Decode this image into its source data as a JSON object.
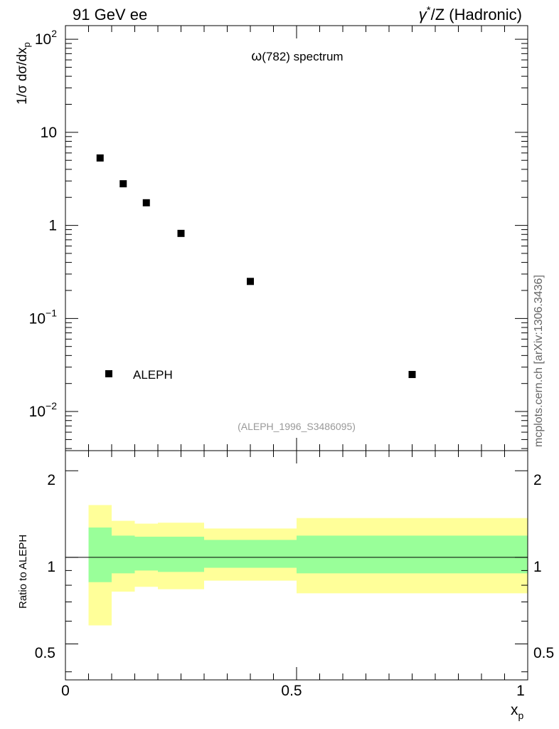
{
  "header": {
    "left": "91 GeV ee",
    "right_sym": "γ",
    "right_sup": "*",
    "right_rest": "/Z (Hadronic)"
  },
  "main_panel": {
    "title_sym": "ω",
    "title_rest": "(782) spectrum",
    "ylabel": {
      "main": "1/σ dσ/dx",
      "sub": "p"
    },
    "ytick_labels": [
      {
        "base": "10",
        "exp": "2"
      },
      {
        "base": "10",
        "exp": ""
      },
      {
        "base": "1",
        "exp": ""
      },
      {
        "base": "10",
        "exp": "−1"
      },
      {
        "base": "10",
        "exp": "−2"
      }
    ],
    "legend": {
      "label": "ALEPH",
      "position": "lower-left"
    },
    "analysis_id": "(ALEPH_1996_S3486095)"
  },
  "ratio_panel": {
    "ylabel": "Ratio to ALEPH",
    "ytick_labels_left": [
      "2",
      "1",
      "0.5"
    ],
    "ytick_labels_right": [
      "2",
      "1",
      "0.5"
    ]
  },
  "xaxis": {
    "label_main": "x",
    "label_sub": "p",
    "tick_labels": [
      "0",
      "0.5",
      "1"
    ]
  },
  "side_note": "mcplots.cern.ch [arXiv:1306.3436]",
  "colors": {
    "marker": "#000000",
    "band_inner": "#99ff99",
    "band_outer": "#ffff99",
    "analysis_id": "#999999"
  },
  "chart_data": [
    {
      "type": "scatter",
      "yscale": "log",
      "xlim": [
        0,
        1
      ],
      "ylim": [
        0.0038,
        140
      ],
      "series": [
        {
          "name": "ALEPH",
          "x": [
            0.075,
            0.125,
            0.175,
            0.25,
            0.4,
            0.75
          ],
          "y": [
            5.3,
            2.8,
            1.75,
            0.82,
            0.25,
            0.025
          ]
        }
      ]
    },
    {
      "type": "area",
      "yscale": "log",
      "xlim": [
        0,
        1
      ],
      "ylim": [
        0.375,
        2.35
      ],
      "reference_line": 1,
      "bins": [
        {
          "x0": 0.05,
          "x1": 0.1,
          "inner": [
            0.82,
            1.27
          ],
          "outer": [
            0.58,
            1.52
          ]
        },
        {
          "x0": 0.1,
          "x1": 0.15,
          "inner": [
            0.88,
            1.19
          ],
          "outer": [
            0.76,
            1.34
          ]
        },
        {
          "x0": 0.15,
          "x1": 0.2,
          "inner": [
            0.9,
            1.18
          ],
          "outer": [
            0.79,
            1.31
          ]
        },
        {
          "x0": 0.2,
          "x1": 0.3,
          "inner": [
            0.89,
            1.18
          ],
          "outer": [
            0.775,
            1.32
          ]
        },
        {
          "x0": 0.3,
          "x1": 0.5,
          "inner": [
            0.92,
            1.15
          ],
          "outer": [
            0.83,
            1.26
          ]
        },
        {
          "x0": 0.5,
          "x1": 1.0,
          "inner": [
            0.88,
            1.19
          ],
          "outer": [
            0.75,
            1.37
          ]
        }
      ]
    }
  ]
}
